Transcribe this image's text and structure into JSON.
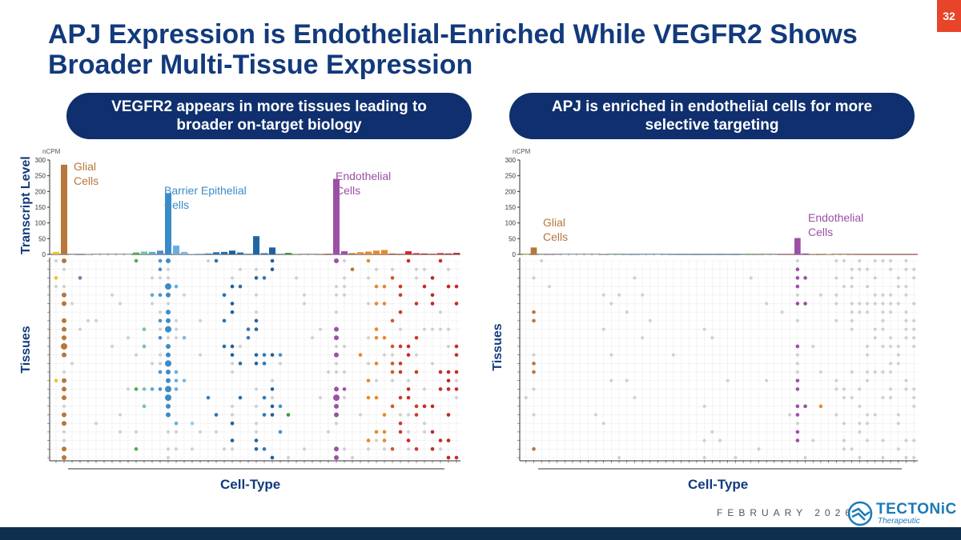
{
  "title": "APJ Expression is Endothelial-Enriched While VEGFR2 Shows Broader Multi-Tissue Expression",
  "page_number": "32",
  "left_panel": {
    "pill_text": "VEGFR2 appears in more tissues leading to broader on-target biology",
    "y_axis_top": "Transcript Level",
    "y_axis_bottom": "Tissues",
    "x_axis": "Cell-Type",
    "annotations": {
      "glial": "Glial Cells",
      "barrier": "Barrier Epithelial Cells",
      "endothelial": "Endothelial Cells"
    }
  },
  "right_panel": {
    "pill_text": "APJ is enriched in endothelial cells for more selective targeting",
    "y_axis_bottom": "Tissues",
    "x_axis": "Cell-Type",
    "annotations": {
      "glial": "Glial Cells",
      "endothelial": "Endothelial Cells"
    }
  },
  "footer": {
    "date": "FEBRUARY 2026",
    "logo_name": "TECTONiC",
    "logo_sub": "Therapeutic"
  },
  "colors": {
    "navy": "#0f2f6e",
    "title": "#123a7c",
    "accent": "#e8442a",
    "glial": "#b8763a",
    "barrier": "#3a8cc8",
    "endothelial": "#9c4fa6"
  },
  "chart_data": [
    {
      "type": "bar",
      "name": "VEGFR2",
      "unit": "nCPM",
      "ylim": [
        0,
        300
      ],
      "yticks": [
        0,
        50,
        100,
        150,
        200,
        250,
        300
      ],
      "values": [
        8,
        285,
        0,
        2,
        1,
        0,
        0,
        0,
        0,
        0,
        6,
        9,
        8,
        12,
        195,
        28,
        8,
        2,
        2,
        3,
        7,
        8,
        12,
        6,
        2,
        58,
        4,
        22,
        2,
        5,
        1,
        0,
        0,
        1,
        2,
        240,
        10,
        4,
        7,
        9,
        12,
        14,
        3,
        2,
        10,
        4,
        3,
        2,
        4,
        3,
        5
      ],
      "colors": [
        "#f2c12e",
        "#b8763a",
        "#999999",
        "#8e6bb8",
        "#999999",
        "#cccccc",
        "#cccccc",
        "#cccccc",
        "#cccccc",
        "#cccccc",
        "#4caf50",
        "#73c4a8",
        "#5fa8d3",
        "#4f8fce",
        "#3a8cc8",
        "#6aaee0",
        "#7db7e5",
        "#9fc9ea",
        "#5e9ed6",
        "#3d7fb8",
        "#2b74b3",
        "#2670b0",
        "#1f5f9e",
        "#2d6ca8",
        "#3a7ab8",
        "#1f66a8",
        "#2e78b8",
        "#1f5f9e",
        "#4a8fcc",
        "#3c9a3c",
        "#6a8f3a",
        "#999999",
        "#999999",
        "#b84a2a",
        "#a8453a",
        "#9c4fa6",
        "#9c4fa6",
        "#b8763a",
        "#e68a2e",
        "#e68a2e",
        "#e68a2e",
        "#e68a2e",
        "#cc5a2a",
        "#cc3a2a",
        "#cc2a2a",
        "#cc3a2a",
        "#cc2a2a",
        "#b82a2a",
        "#cc2a2a",
        "#bb2a2a",
        "#cc2a2a"
      ]
    },
    {
      "type": "bar",
      "name": "APJ",
      "unit": "nCPM",
      "ylim": [
        0,
        300
      ],
      "yticks": [
        0,
        50,
        100,
        150,
        200,
        250,
        300
      ],
      "values": [
        0,
        22,
        0,
        0,
        0,
        0,
        0,
        0,
        0,
        0,
        1,
        0,
        0,
        0,
        0,
        0,
        0,
        0,
        0,
        0,
        0,
        0,
        0,
        0,
        0,
        0,
        0,
        0,
        0,
        0,
        0,
        0,
        0,
        0,
        0,
        52,
        3,
        1,
        2,
        1,
        0,
        0,
        0,
        0,
        0,
        0,
        0,
        0,
        0,
        0,
        0
      ],
      "colors": [
        "#f2c12e",
        "#b8763a",
        "#999999",
        "#8e6bb8",
        "#999999",
        "#cccccc",
        "#cccccc",
        "#cccccc",
        "#cccccc",
        "#cccccc",
        "#4caf50",
        "#73c4a8",
        "#5fa8d3",
        "#4f8fce",
        "#3a8cc8",
        "#6aaee0",
        "#7db7e5",
        "#9fc9ea",
        "#5e9ed6",
        "#3d7fb8",
        "#2b74b3",
        "#2670b0",
        "#1f5f9e",
        "#2d6ca8",
        "#3a7ab8",
        "#1f66a8",
        "#2e78b8",
        "#1f5f9e",
        "#4a8fcc",
        "#3c9a3c",
        "#6a8f3a",
        "#999999",
        "#999999",
        "#b84a2a",
        "#a8453a",
        "#9c4fa6",
        "#9c4fa6",
        "#b8763a",
        "#e68a2e",
        "#e68a2e",
        "#e68a2e",
        "#e68a2e",
        "#cc5a2a",
        "#cc3a2a",
        "#cc2a2a",
        "#cc3a2a",
        "#cc2a2a",
        "#b82a2a",
        "#cc2a2a",
        "#bb2a2a",
        "#cc2a2a"
      ]
    }
  ]
}
